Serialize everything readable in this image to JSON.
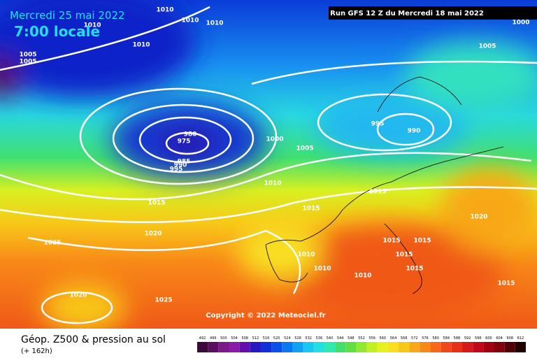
{
  "header": {
    "date": "Mercredi 25 mai 2022",
    "time": "7:00 locale",
    "run": "Run GFS 12 Z du Mercredi 18 mai 2022"
  },
  "isobar_labels": [
    1010,
    1010,
    1010,
    1010,
    1005,
    1005,
    1010,
    1000,
    1005,
    995,
    990,
    980,
    975,
    985,
    990,
    995,
    1000,
    1005,
    1010,
    1015,
    1015,
    1015,
    1020,
    1020,
    1025,
    1015,
    1015,
    1010,
    1015,
    1010,
    1015,
    1010,
    1015,
    1020,
    1025
  ],
  "copyright": "Copyright © 2022 Meteociel.fr",
  "legend": {
    "title": "Géop. Z500 & pression au sol",
    "lead": "(+ 162h)",
    "ticks": [
      492,
      496,
      500,
      504,
      508,
      512,
      516,
      520,
      524,
      528,
      532,
      536,
      540,
      544,
      548,
      552,
      556,
      560,
      564,
      568,
      572,
      576,
      580,
      584,
      588,
      592,
      596,
      600,
      604,
      608,
      612
    ],
    "colors": [
      "#3a0a3a",
      "#5a1060",
      "#7a1a8a",
      "#8a1aa8",
      "#6010b0",
      "#2818c0",
      "#1030d8",
      "#0a50e8",
      "#0a78f0",
      "#10a0f4",
      "#18c8f0",
      "#20e0e0",
      "#30e8b0",
      "#40e070",
      "#60e040",
      "#90e830",
      "#c0f020",
      "#e8f020",
      "#f8e020",
      "#f8c818",
      "#f8a818",
      "#f88818",
      "#f86818",
      "#f04818",
      "#e83018",
      "#d81818",
      "#c00818",
      "#a00010",
      "#800010",
      "#500008",
      "#200000"
    ]
  }
}
